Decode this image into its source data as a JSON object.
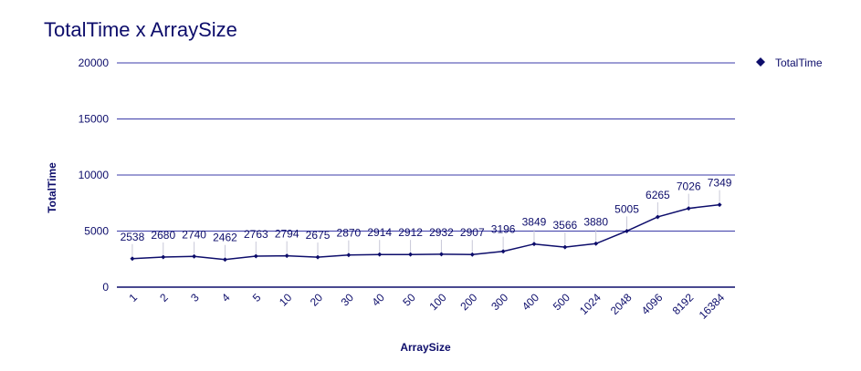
{
  "chart_data": {
    "type": "line",
    "title": "TotalTime x ArraySize",
    "xlabel": "ArraySize",
    "ylabel": "TotalTime",
    "ylim": [
      0,
      20000
    ],
    "yticks": [
      "0",
      "5000",
      "10000",
      "15000",
      "20000"
    ],
    "categories": [
      "1",
      "2",
      "3",
      "4",
      "5",
      "10",
      "20",
      "30",
      "40",
      "50",
      "100",
      "200",
      "300",
      "400",
      "500",
      "1024",
      "2048",
      "4096",
      "8192",
      "16384"
    ],
    "series": [
      {
        "name": "TotalTime",
        "values": [
          2538,
          2680,
          2740,
          2462,
          2763,
          2794,
          2675,
          2870,
          2914,
          2912,
          2932,
          2907,
          3196,
          3849,
          3566,
          3880,
          5005,
          6265,
          7026,
          7349
        ]
      }
    ],
    "grid": true,
    "legend_position": "right",
    "colors": {
      "line": "#0d0d6b",
      "grid": "#3b3ba8",
      "text": "#0d0d6b"
    }
  }
}
